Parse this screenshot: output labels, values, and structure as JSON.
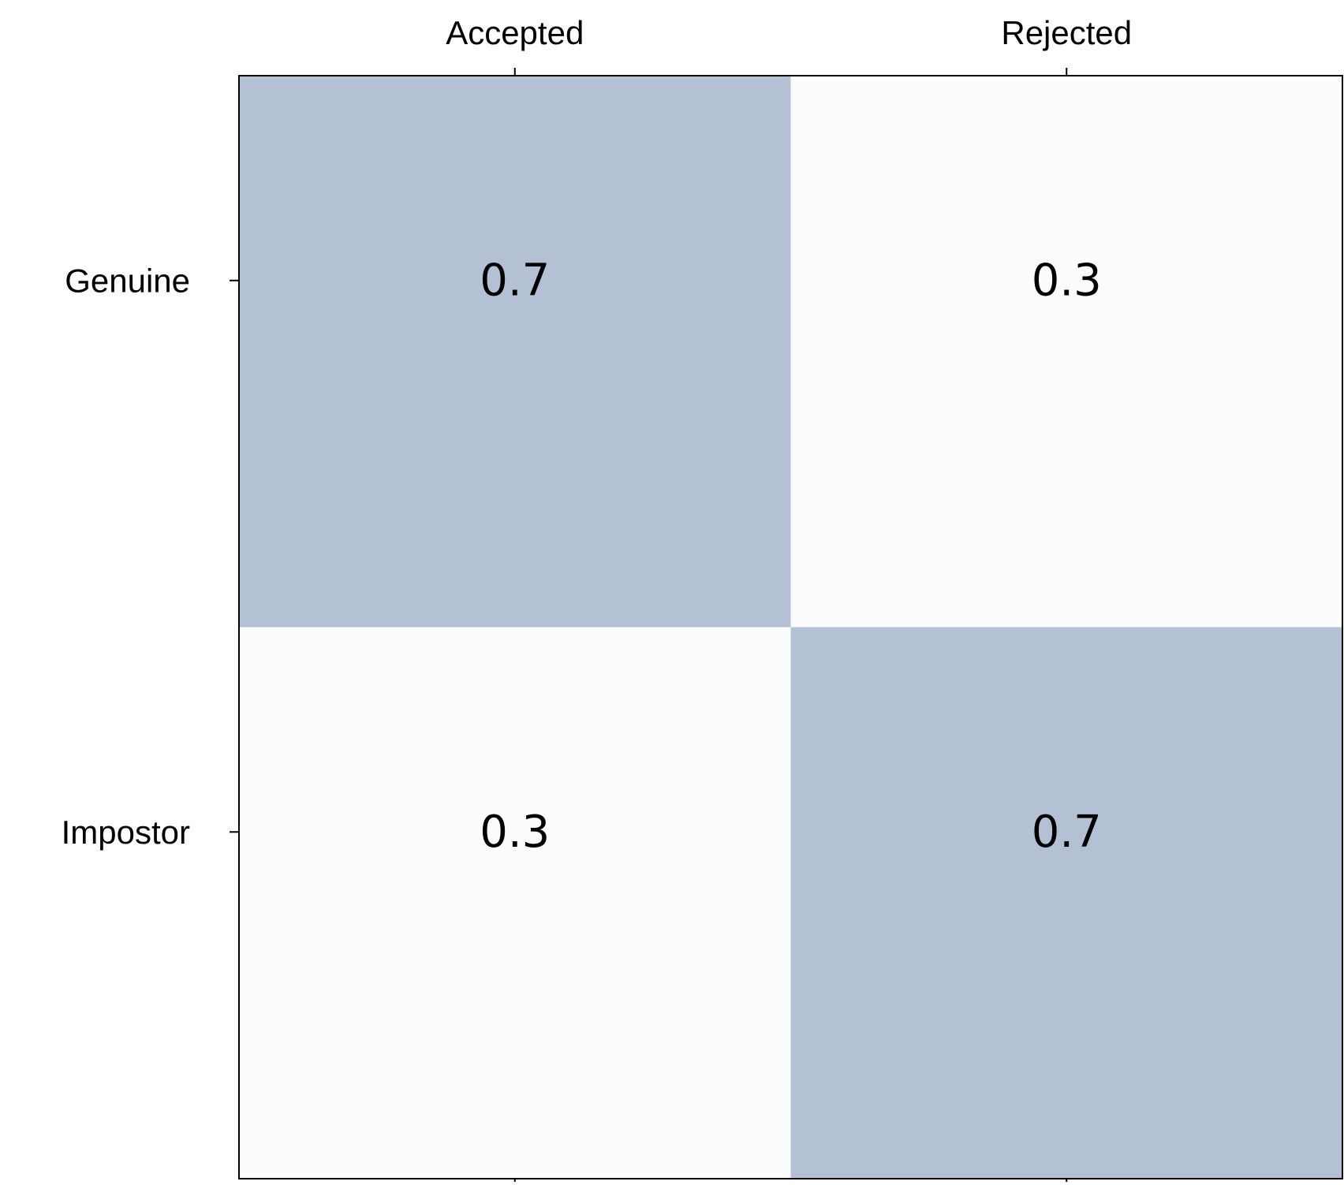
{
  "chart_data": {
    "type": "heatmap",
    "title": "",
    "xlabel": "",
    "ylabel": "",
    "columns": [
      "Accepted",
      "Rejected"
    ],
    "rows": [
      "Genuine",
      "Impostor"
    ],
    "values": [
      [
        0.7,
        0.3
      ],
      [
        0.3,
        0.7
      ]
    ],
    "value_range": [
      0.3,
      0.7
    ],
    "colors": {
      "high": "#b4c0d3",
      "low": "#fafcfe",
      "frame": "#000000",
      "text": "#000000"
    },
    "x_ticks_position": "top"
  }
}
